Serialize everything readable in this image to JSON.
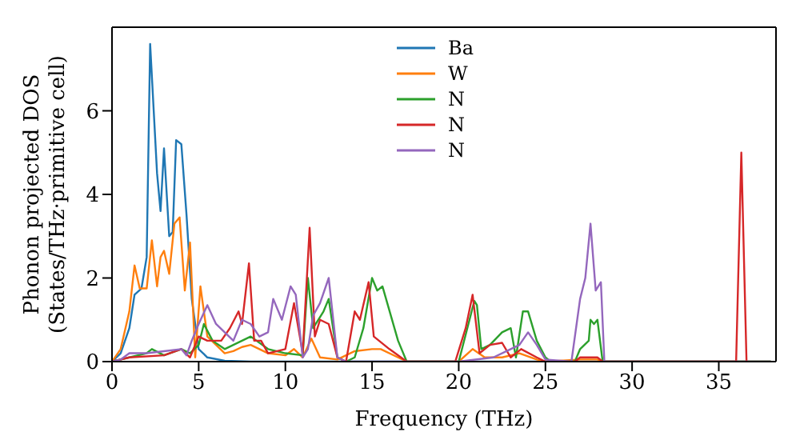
{
  "chart_data": {
    "type": "line",
    "xlabel": "Frequency (THz)",
    "ylabel": "Phonon projected DOS\n(States/THz·primitive cell)",
    "xlim": [
      0,
      38.3
    ],
    "ylim": [
      0,
      8
    ],
    "xticks": [
      0,
      5,
      10,
      15,
      20,
      25,
      30,
      35
    ],
    "yticks": [
      0,
      2,
      4,
      6
    ],
    "grid": false,
    "legend": "top",
    "marker": "none",
    "line_style": "solid",
    "series": [
      {
        "name": "Ba",
        "color": "#1f77b4",
        "x": [
          0,
          0.5,
          1,
          1.3,
          1.7,
          2,
          2.2,
          2.6,
          2.8,
          3,
          3.3,
          3.5,
          3.7,
          4,
          4.3,
          4.6,
          5,
          5.5,
          6.5,
          8,
          38
        ],
        "values": [
          0,
          0.2,
          0.8,
          1.6,
          1.75,
          2.5,
          7.6,
          4.5,
          3.6,
          5.1,
          3,
          3.1,
          5.3,
          5.2,
          3.5,
          1.5,
          0.3,
          0.1,
          0.02,
          0,
          0
        ]
      },
      {
        "name": "W",
        "color": "#ff7f0e",
        "x": [
          0,
          0.5,
          1,
          1.3,
          1.6,
          2,
          2.3,
          2.6,
          2.8,
          3,
          3.3,
          3.6,
          3.9,
          4.2,
          4.5,
          4.8,
          5.1,
          5.5,
          6,
          6.5,
          7,
          7.5,
          8,
          8.5,
          9,
          10,
          10.5,
          11,
          11.5,
          12,
          13,
          14,
          15,
          15.5,
          16.5,
          17,
          20,
          20.8,
          21.5,
          22.5,
          23.5,
          24.5,
          25,
          27,
          28,
          28.3,
          38
        ],
        "values": [
          0,
          0.3,
          1.2,
          2.3,
          1.75,
          1.75,
          2.9,
          1.8,
          2.5,
          2.65,
          2.1,
          3.3,
          3.45,
          1.7,
          2.85,
          0.1,
          1.8,
          0.6,
          0.4,
          0.2,
          0.25,
          0.35,
          0.4,
          0.3,
          0.2,
          0.15,
          0.3,
          0.1,
          0.55,
          0.1,
          0.05,
          0.25,
          0.3,
          0.3,
          0.1,
          0,
          0,
          0.3,
          0.1,
          0.1,
          0.2,
          0.05,
          0,
          0.05,
          0.05,
          0,
          0
        ]
      },
      {
        "name": "N",
        "color": "#2ca02c",
        "x": [
          0,
          1,
          2,
          2.3,
          3,
          4,
          4.5,
          5,
          5.3,
          5.8,
          6.5,
          7.5,
          8,
          9,
          10,
          11,
          11.3,
          11.6,
          12.2,
          12.5,
          13,
          13.5,
          14,
          14.5,
          15,
          15.3,
          15.6,
          16.5,
          17,
          20,
          20.9,
          21.05,
          21.3,
          21.8,
          22.5,
          23,
          23.3,
          23.7,
          24,
          24.5,
          25,
          25.3,
          26.7,
          27,
          27.5,
          27.6,
          27.8,
          28,
          28.3,
          38
        ],
        "values": [
          0,
          0.1,
          0.2,
          0.3,
          0.15,
          0.3,
          0.2,
          0.4,
          0.9,
          0.5,
          0.3,
          0.5,
          0.6,
          0.3,
          0.2,
          0.15,
          2,
          0.8,
          1.2,
          1.5,
          0.1,
          0,
          0.1,
          0.8,
          2,
          1.7,
          1.8,
          0.5,
          0,
          0,
          1.45,
          1.35,
          0.3,
          0.4,
          0.7,
          0.8,
          0.1,
          1.2,
          1.2,
          0.5,
          0.1,
          0,
          0,
          0.3,
          0.5,
          1,
          0.9,
          1,
          0,
          0
        ]
      },
      {
        "name": "N",
        "color": "#d62728",
        "x": [
          0,
          1,
          3,
          4,
          4.5,
          5,
          5.5,
          6.3,
          6.8,
          7.3,
          7.5,
          7.9,
          8.2,
          8.6,
          9,
          10,
          10.5,
          11,
          11.4,
          11.7,
          12,
          12.5,
          13,
          13.5,
          14,
          14.3,
          14.8,
          15.1,
          16,
          17,
          19.8,
          20.4,
          20.8,
          21.2,
          21.8,
          22.5,
          23,
          23.6,
          24.5,
          25,
          26.7,
          27,
          28,
          28.3,
          36,
          36.3,
          36.6
        ],
        "values": [
          0,
          0.1,
          0.15,
          0.3,
          0.1,
          0.6,
          0.5,
          0.5,
          0.8,
          1.2,
          0.9,
          2.35,
          0.5,
          0.5,
          0.2,
          0.3,
          1.4,
          0.2,
          3.2,
          0.6,
          1,
          0.9,
          0.1,
          0,
          1.2,
          1,
          1.9,
          0.6,
          0.3,
          0,
          0,
          0.8,
          1.6,
          0.2,
          0.4,
          0.45,
          0.1,
          0.3,
          0.1,
          0,
          0,
          0.1,
          0.1,
          0,
          0,
          5,
          0
        ]
      },
      {
        "name": "N",
        "color": "#9467bd",
        "x": [
          0,
          0.5,
          1,
          2,
          3,
          4,
          4.3,
          4.6,
          5,
          5.5,
          6,
          6.5,
          7,
          7.5,
          8,
          8.5,
          9,
          9.3,
          9.8,
          10.3,
          10.6,
          11,
          11.3,
          11.6,
          12,
          12.5,
          13,
          13.5,
          20,
          22,
          23,
          23.5,
          24,
          24.5,
          25,
          26.5,
          27,
          27.3,
          27.6,
          27.9,
          28.2,
          28.4,
          38
        ],
        "values": [
          0,
          0.05,
          0.2,
          0.2,
          0.25,
          0.3,
          0.15,
          0.5,
          0.9,
          1.35,
          0.9,
          0.7,
          0.5,
          1,
          0.9,
          0.6,
          0.7,
          1.5,
          1,
          1.8,
          1.6,
          0.1,
          0.3,
          1.1,
          1.4,
          2,
          0.1,
          0,
          0,
          0.1,
          0.3,
          0.4,
          0.7,
          0.4,
          0.05,
          0,
          1.5,
          2,
          3.3,
          1.7,
          1.9,
          0,
          0
        ]
      }
    ]
  }
}
